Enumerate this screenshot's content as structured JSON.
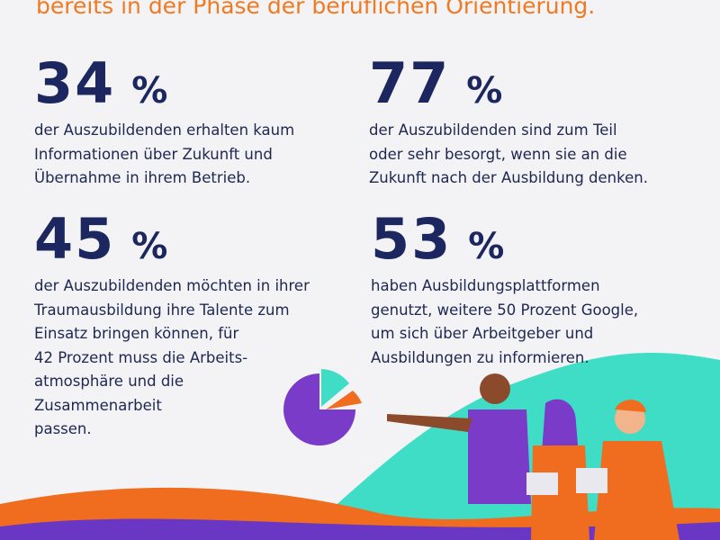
{
  "header": {
    "title": "bereits in der Phase der beruflichen Orientierung."
  },
  "stats": [
    {
      "number": "34",
      "unit": "%",
      "text": [
        "der Auszubildenden erhalten kaum",
        "Informationen über Zukunft und",
        "Übernahme in ihrem Betrieb."
      ]
    },
    {
      "number": "77",
      "unit": "%",
      "text": [
        "der Auszubildenden sind zum Teil",
        "oder sehr besorgt, wenn sie an die",
        "Zukunft nach der Ausbildung denken."
      ]
    },
    {
      "number": "45",
      "unit": "%",
      "text": [
        "der Auszubildenden möchten in ihrer",
        "Traumausbildung ihre Talente zum",
        "Einsatz bringen können, für",
        "42 Prozent muss die Arbeits-",
        "atmosphäre und die",
        "Zusammenarbeit",
        "passen."
      ]
    },
    {
      "number": "53",
      "unit": "%",
      "text": [
        "haben Ausbildungsplattformen",
        "genutzt, weitere 50 Prozent Google,",
        "um sich über Arbeitgeber und",
        "Ausbildungen zu informieren."
      ]
    }
  ]
}
